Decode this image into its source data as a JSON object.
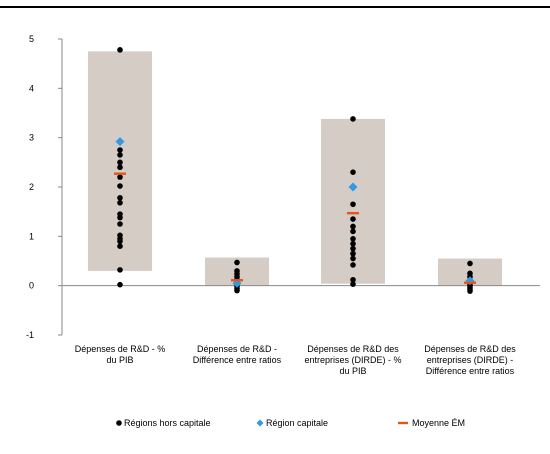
{
  "chart_data": {
    "type": "scatter",
    "title": "",
    "xlabel": "",
    "ylabel": "",
    "ylim": [
      -1,
      5
    ],
    "yticks": [
      -1,
      0,
      1,
      2,
      3,
      4,
      5
    ],
    "grid": false,
    "legend_position": "bottom",
    "categories": [
      [
        "Dépenses de R&D - %",
        "du PIB"
      ],
      [
        "Dépenses de R&D -",
        "Différence entre ratios"
      ],
      [
        "Dépenses de R&D des",
        "entreprises (DIRDE) - %",
        "du PIB"
      ],
      [
        "Dépenses de R&D des",
        "entreprises (DIRDE) -",
        "Différence entre ratios"
      ]
    ],
    "range_bars": [
      {
        "min": 0.3,
        "max": 4.75
      },
      {
        "min": 0.0,
        "max": 0.57
      },
      {
        "min": 0.04,
        "max": 3.38
      },
      {
        "min": 0.0,
        "max": 0.55
      }
    ],
    "series": [
      {
        "name": "Régions hors capitale",
        "color": "#000000",
        "marker": "circle",
        "values": [
          [
            4.78,
            2.75,
            2.65,
            2.5,
            2.4,
            2.2,
            2.02,
            1.78,
            1.68,
            1.45,
            1.38,
            1.25,
            1.02,
            0.95,
            0.9,
            0.8,
            0.32,
            0.02
          ],
          [
            0.47,
            0.3,
            0.24,
            0.18,
            0.12,
            0.06,
            0.02,
            -0.02,
            -0.06,
            -0.1
          ],
          [
            3.38,
            2.3,
            1.65,
            1.35,
            1.2,
            1.1,
            0.95,
            0.85,
            0.75,
            0.65,
            0.55,
            0.42,
            0.12,
            0.03
          ],
          [
            0.45,
            0.25,
            0.18,
            0.1,
            0.05,
            0.01,
            -0.03,
            -0.07,
            -0.11
          ]
        ]
      },
      {
        "name": "Région capitale",
        "color": "#3399e6",
        "marker": "diamond",
        "values": [
          2.92,
          0.05,
          2.0,
          0.1
        ]
      },
      {
        "name": "Moyenne ÉM",
        "color": "#e2561c",
        "marker": "dash",
        "values": [
          2.27,
          0.11,
          1.47,
          0.06
        ]
      }
    ],
    "range_color": "#d6ccc6"
  }
}
